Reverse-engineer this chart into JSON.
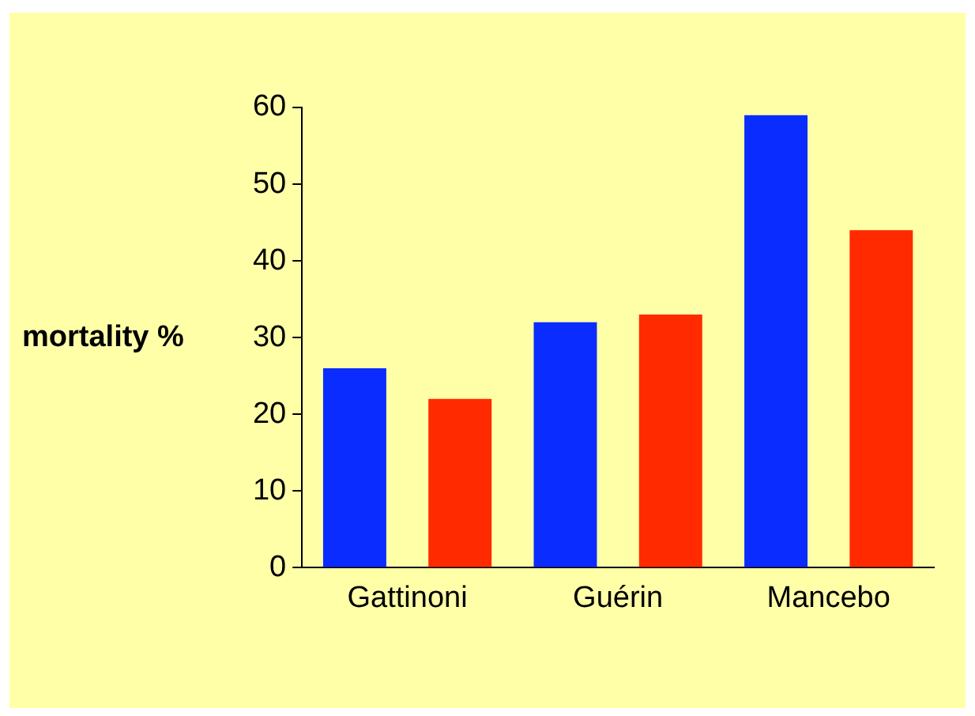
{
  "chart_data": {
    "type": "bar",
    "ylabel": "mortality %",
    "categories": [
      "Gattinoni",
      "Guérin",
      "Mancebo"
    ],
    "series": [
      {
        "color": "#0a2cff",
        "values": [
          26,
          32,
          59
        ]
      },
      {
        "color": "#ff2a00",
        "values": [
          22,
          33,
          44
        ]
      }
    ],
    "ylim": [
      0,
      60
    ],
    "yticks": [
      0,
      10,
      20,
      30,
      40,
      50,
      60
    ],
    "grid": false,
    "legend": false
  }
}
